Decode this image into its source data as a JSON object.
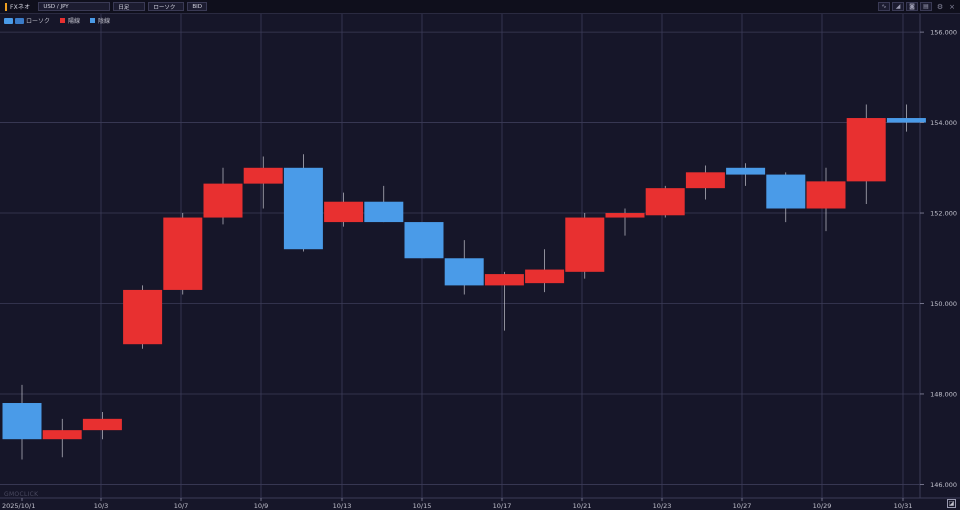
{
  "toolbar": {
    "app_name": "FXネオ",
    "pair": "USD / JPY",
    "timeframe": "日足",
    "chart_type": "ローソク",
    "price_side": "BID",
    "right_icons": [
      "line-chart-icon",
      "area-chart-icon",
      "camera-icon",
      "print-icon",
      "settings-icon",
      "close-icon"
    ]
  },
  "legend": {
    "candle_label": "ローソク",
    "up_label": "陽線",
    "down_label": "陰線"
  },
  "colors": {
    "background": "#161629",
    "up": "#e83030",
    "down": "#4a9be8",
    "grid": "#3c3c58"
  },
  "watermark": "GMOCLICK",
  "chart_data": {
    "type": "candlestick",
    "ylim": [
      145.7,
      156.4
    ],
    "y_ticks": [
      "146.000",
      "148.000",
      "150.000",
      "152.000",
      "154.000",
      "156.000"
    ],
    "x_tick_labels": [
      "2025/10/1",
      "10/3",
      "10/7",
      "10/9",
      "10/13",
      "10/15",
      "10/17",
      "10/21",
      "10/23",
      "10/27",
      "10/29",
      "10/31"
    ],
    "candles": [
      {
        "date": "2025/10/1",
        "open": 147.8,
        "high": 148.2,
        "low": 146.55,
        "close": 147.0
      },
      {
        "date": "10/2",
        "open": 147.0,
        "high": 147.45,
        "low": 146.6,
        "close": 147.2
      },
      {
        "date": "10/3",
        "open": 147.2,
        "high": 147.6,
        "low": 147.0,
        "close": 147.45
      },
      {
        "date": "10/6",
        "open": 149.1,
        "high": 150.4,
        "low": 149.0,
        "close": 150.3
      },
      {
        "date": "10/7",
        "open": 150.3,
        "high": 152.0,
        "low": 150.2,
        "close": 151.9
      },
      {
        "date": "10/8",
        "open": 151.9,
        "high": 153.0,
        "low": 151.75,
        "close": 152.65
      },
      {
        "date": "10/9",
        "open": 152.65,
        "high": 153.25,
        "low": 152.1,
        "close": 153.0
      },
      {
        "date": "10/10",
        "open": 153.0,
        "high": 153.3,
        "low": 151.15,
        "close": 151.2
      },
      {
        "date": "10/13",
        "open": 151.8,
        "high": 152.45,
        "low": 151.7,
        "close": 152.25
      },
      {
        "date": "10/14",
        "open": 152.25,
        "high": 152.6,
        "low": 151.8,
        "close": 151.8
      },
      {
        "date": "10/15",
        "open": 151.8,
        "high": 151.8,
        "low": 151.0,
        "close": 151.0
      },
      {
        "date": "10/16",
        "open": 151.0,
        "high": 151.4,
        "low": 150.2,
        "close": 150.4
      },
      {
        "date": "10/17",
        "open": 150.4,
        "high": 150.7,
        "low": 149.4,
        "close": 150.65
      },
      {
        "date": "10/20",
        "open": 150.45,
        "high": 151.2,
        "low": 150.25,
        "close": 150.75
      },
      {
        "date": "10/21",
        "open": 150.7,
        "high": 152.0,
        "low": 150.55,
        "close": 151.9
      },
      {
        "date": "10/22",
        "open": 151.9,
        "high": 152.1,
        "low": 151.5,
        "close": 152.0
      },
      {
        "date": "10/23",
        "open": 151.95,
        "high": 152.6,
        "low": 151.9,
        "close": 152.55
      },
      {
        "date": "10/24",
        "open": 152.55,
        "high": 153.05,
        "low": 152.3,
        "close": 152.9
      },
      {
        "date": "10/27",
        "open": 153.0,
        "high": 153.1,
        "low": 152.6,
        "close": 152.85
      },
      {
        "date": "10/28",
        "open": 152.85,
        "high": 152.9,
        "low": 151.8,
        "close": 152.1
      },
      {
        "date": "10/29",
        "open": 152.1,
        "high": 153.0,
        "low": 151.6,
        "close": 152.7
      },
      {
        "date": "10/30",
        "open": 152.7,
        "high": 154.4,
        "low": 152.2,
        "close": 154.1
      },
      {
        "date": "10/31",
        "open": 154.1,
        "high": 154.4,
        "low": 153.8,
        "close": 154.0
      }
    ]
  }
}
